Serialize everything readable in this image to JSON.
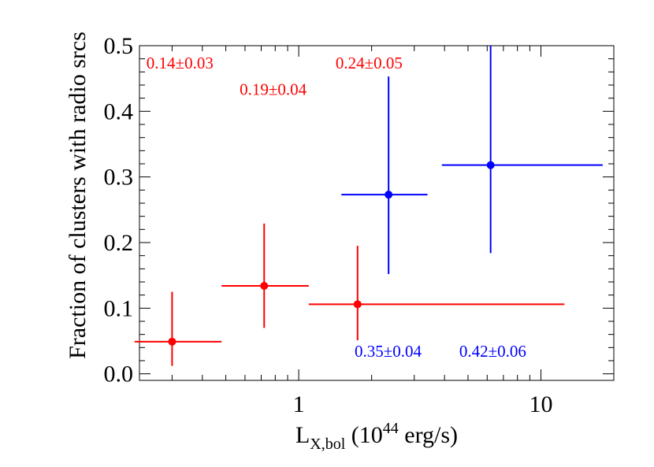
{
  "chart_data": {
    "type": "scatter",
    "title": "",
    "xlabel": {
      "main": "L",
      "subscript": "X,bol",
      "unit_prefix": " (10",
      "superscript": "44",
      "unit_suffix": " erg/s)"
    },
    "ylabel": "Fraction of clusters with radio srcs",
    "xscale": "log",
    "xlim": [
      0.22,
      20
    ],
    "ylim": [
      -0.01,
      0.5
    ],
    "grid": false,
    "legend": "none",
    "x_ticks": [
      {
        "value": 1,
        "label": "1"
      },
      {
        "value": 10,
        "label": "10"
      }
    ],
    "x_minor_ticks": [
      0.3,
      0.4,
      0.5,
      0.6,
      0.7,
      0.8,
      0.9,
      2,
      3,
      4,
      5,
      6,
      7,
      8,
      9,
      20
    ],
    "y_ticks": [
      {
        "value": 0.0,
        "label": "0.0"
      },
      {
        "value": 0.1,
        "label": "0.1"
      },
      {
        "value": 0.2,
        "label": "0.2"
      },
      {
        "value": 0.3,
        "label": "0.3"
      },
      {
        "value": 0.4,
        "label": "0.4"
      },
      {
        "value": 0.5,
        "label": "0.5"
      }
    ],
    "y_minor_step": 0.02,
    "series": [
      {
        "color": "#ff0000",
        "points": [
          {
            "x": 0.3,
            "y": 0.049,
            "x_low": 0.21,
            "x_high": 0.48,
            "y_low": 0.012,
            "y_high": 0.125
          },
          {
            "x": 0.72,
            "y": 0.134,
            "x_low": 0.48,
            "x_high": 1.1,
            "y_low": 0.07,
            "y_high": 0.229
          },
          {
            "x": 1.75,
            "y": 0.106,
            "x_low": 1.1,
            "x_high": 12.5,
            "y_low": 0.051,
            "y_high": 0.195
          }
        ]
      },
      {
        "color": "#0000ff",
        "points": [
          {
            "x": 2.35,
            "y": 0.273,
            "x_low": 1.5,
            "x_high": 3.4,
            "y_low": 0.152,
            "y_high": 0.453
          },
          {
            "x": 6.2,
            "y": 0.318,
            "x_low": 3.9,
            "x_high": 18.0,
            "y_low": 0.184,
            "y_high": 0.5
          }
        ]
      }
    ],
    "annotations": [
      {
        "text": "0.14±0.03",
        "color": "#ff0000",
        "x": 0.235,
        "y": 0.465
      },
      {
        "text": "0.19±0.04",
        "color": "#ff0000",
        "x": 0.57,
        "y": 0.425
      },
      {
        "text": "0.24±0.05",
        "color": "#ff0000",
        "x": 1.42,
        "y": 0.465
      },
      {
        "text": "0.35±0.04",
        "color": "#0000ff",
        "x": 1.7,
        "y": 0.026
      },
      {
        "text": "0.42±0.06",
        "color": "#0000ff",
        "x": 4.6,
        "y": 0.026
      }
    ]
  }
}
